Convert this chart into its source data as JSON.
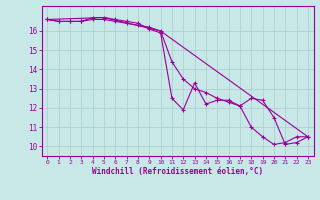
{
  "title": "",
  "xlabel": "Windchill (Refroidissement éolien,°C)",
  "ylabel": "",
  "bg_color": "#c8e8e8",
  "line_color": "#990099",
  "grid_color": "#aacccc",
  "xlim": [
    -0.5,
    23.5
  ],
  "ylim": [
    9.5,
    17.3
  ],
  "xticks": [
    0,
    1,
    2,
    3,
    4,
    5,
    6,
    7,
    8,
    9,
    10,
    11,
    12,
    13,
    14,
    15,
    16,
    17,
    18,
    19,
    20,
    21,
    22,
    23
  ],
  "yticks": [
    10,
    11,
    12,
    13,
    14,
    15,
    16
  ],
  "line1_x": [
    0,
    1,
    2,
    3,
    4,
    5,
    6,
    7,
    8,
    9,
    10,
    11,
    12,
    13,
    14,
    15,
    16,
    17,
    18,
    19,
    20,
    21,
    22,
    23
  ],
  "line1_y": [
    16.6,
    16.5,
    16.5,
    16.5,
    16.6,
    16.6,
    16.5,
    16.4,
    16.3,
    16.2,
    16.0,
    14.4,
    13.5,
    13.0,
    12.8,
    12.5,
    12.3,
    12.1,
    11.0,
    10.5,
    10.1,
    10.2,
    10.5,
    10.5
  ],
  "line2_x": [
    0,
    1,
    2,
    3,
    4,
    5,
    6,
    7,
    8,
    9,
    10,
    11,
    12,
    13,
    14,
    15,
    16,
    17,
    18,
    19,
    20,
    21,
    22,
    23
  ],
  "line2_y": [
    16.6,
    16.5,
    16.5,
    16.5,
    16.7,
    16.7,
    16.6,
    16.5,
    16.4,
    16.1,
    15.9,
    12.5,
    11.9,
    13.3,
    12.2,
    12.4,
    12.4,
    12.1,
    12.5,
    12.4,
    11.5,
    10.1,
    10.2,
    10.5
  ],
  "line3_x": [
    0,
    5,
    10,
    23
  ],
  "line3_y": [
    16.6,
    16.7,
    16.0,
    10.5
  ]
}
